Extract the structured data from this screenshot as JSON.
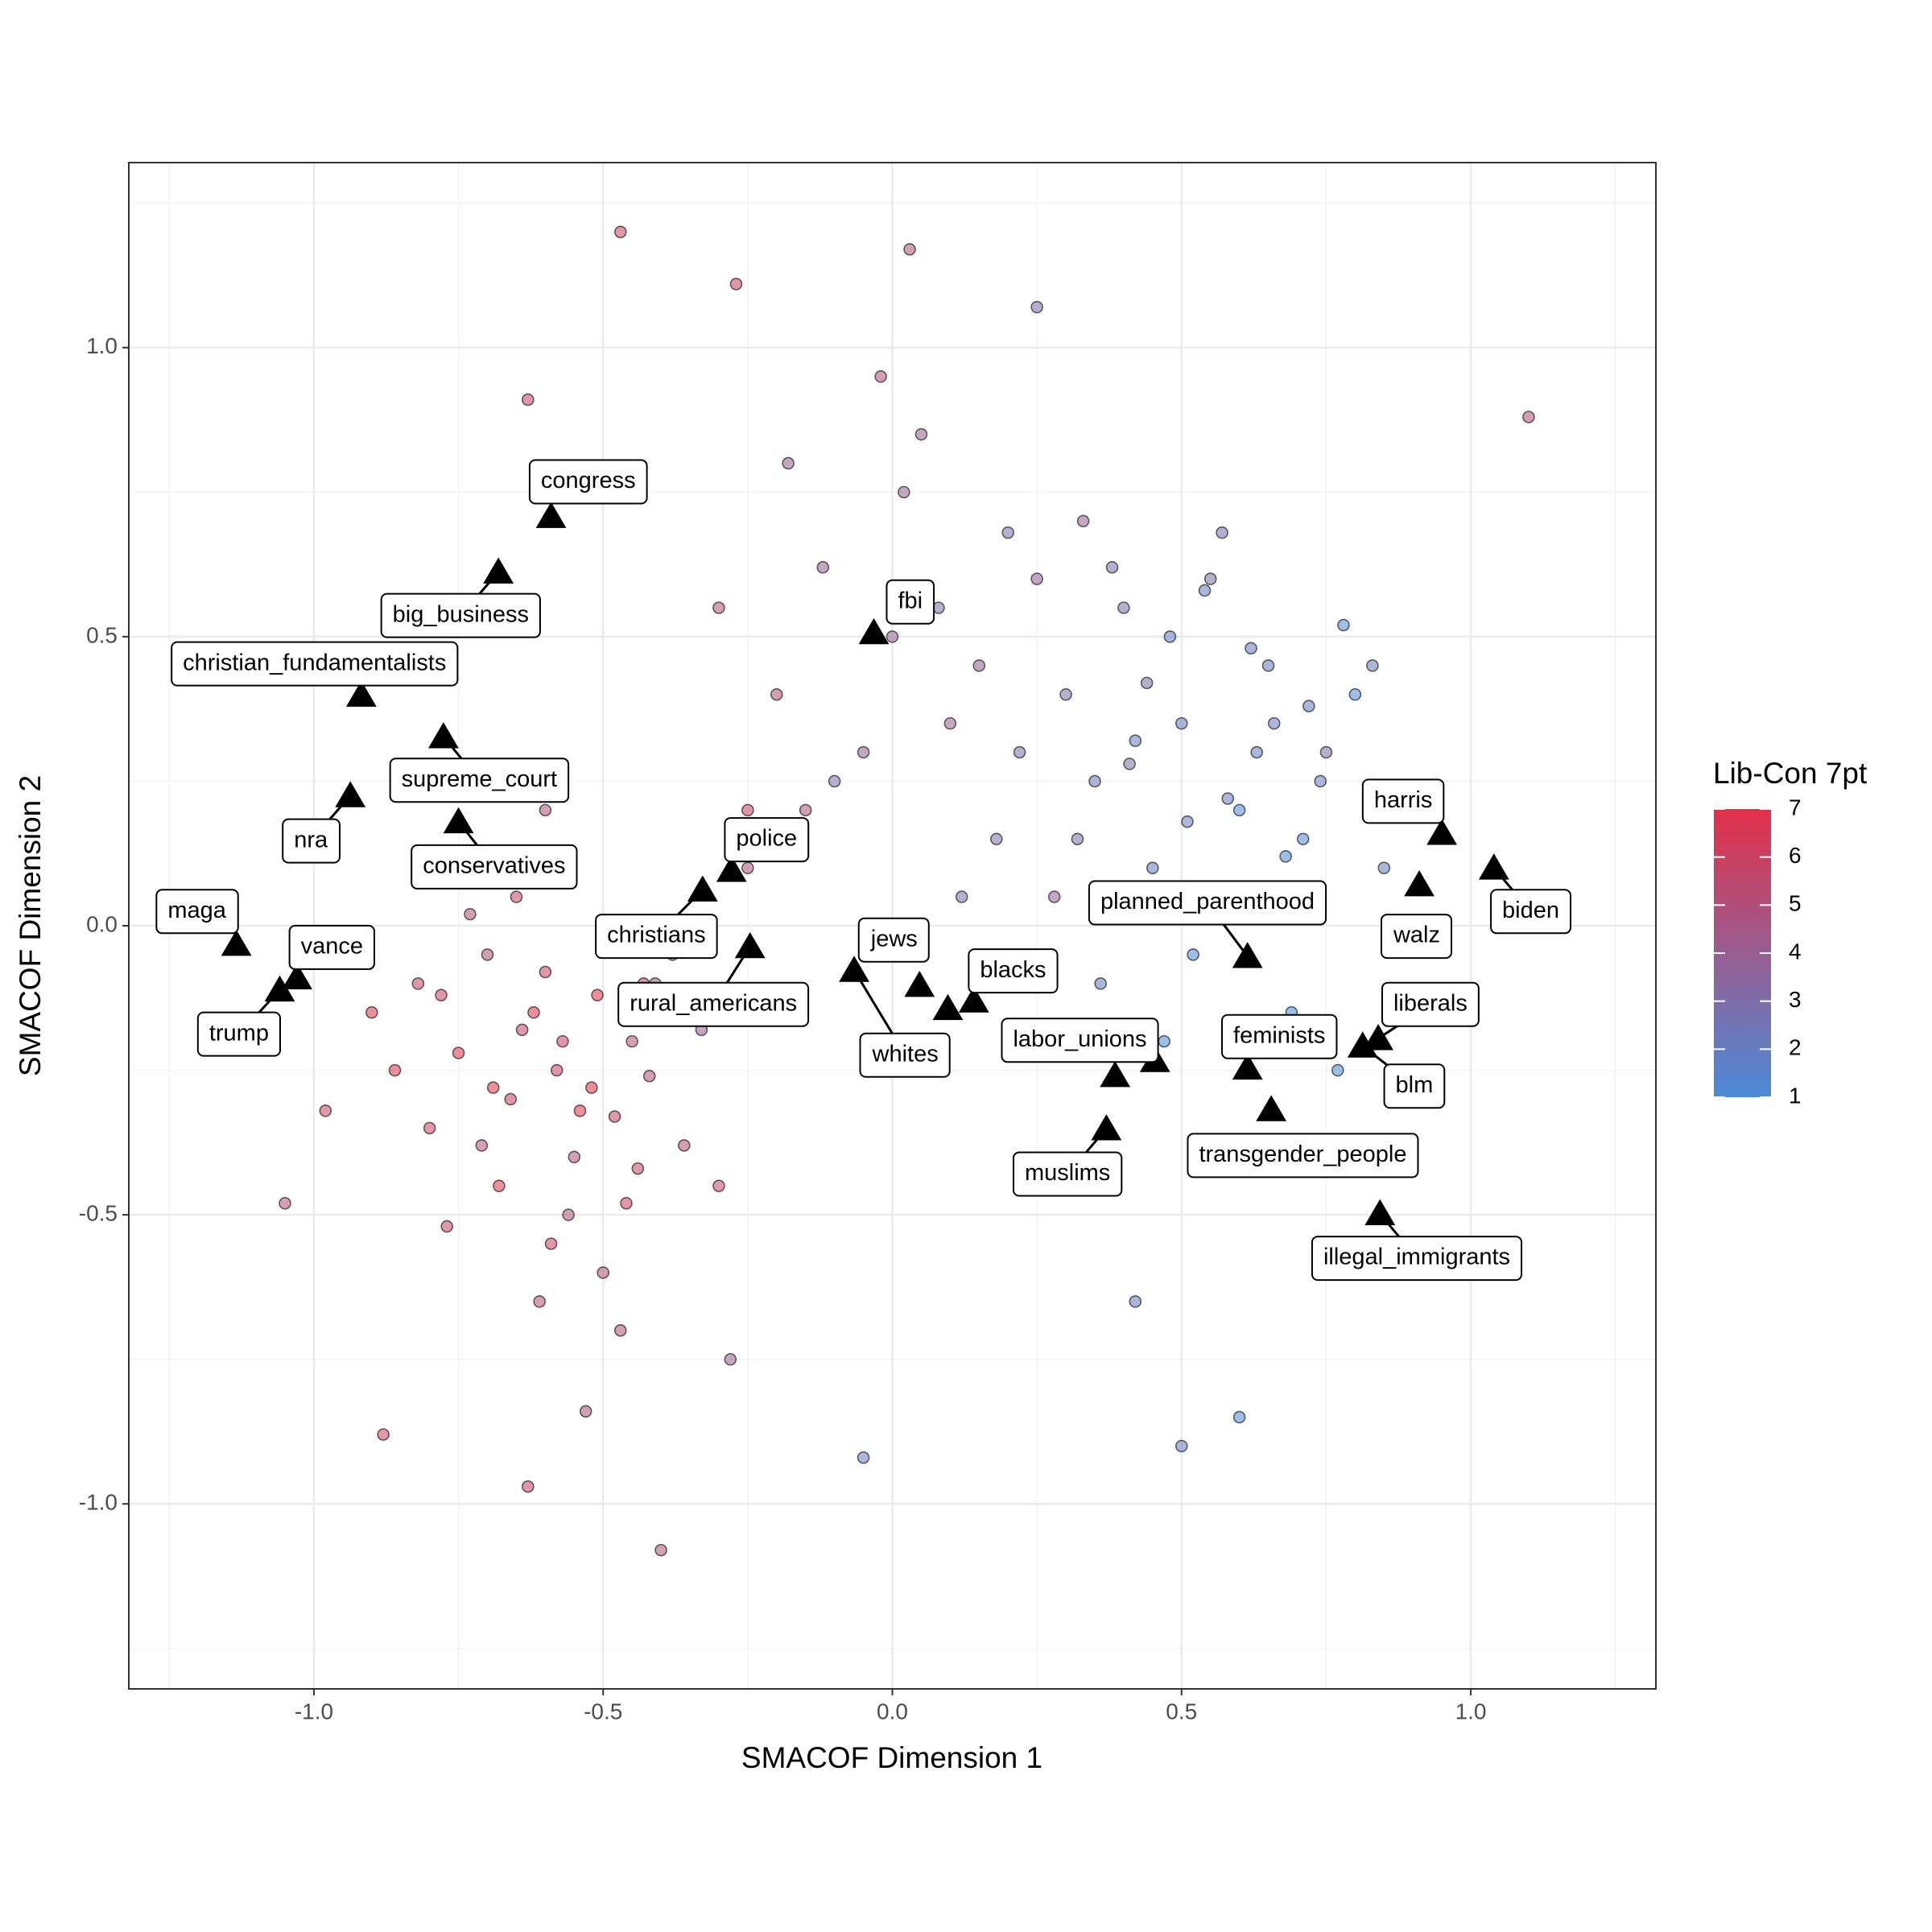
{
  "chart_data": {
    "type": "scatter",
    "xlabel": "SMACOF Dimension 1",
    "ylabel": "SMACOF Dimension 2",
    "xlim": [
      -1.32,
      1.32
    ],
    "ylim": [
      -1.32,
      1.32
    ],
    "xticks": [
      {
        "value": -1,
        "label": "-1.0"
      },
      -0.5,
      {
        "value": 0,
        "label": "0.0"
      },
      0.5,
      {
        "value": 1,
        "label": "1.0"
      }
    ],
    "yticks": [
      {
        "value": -1,
        "label": "-1.0"
      },
      -0.5,
      {
        "value": 0,
        "label": "0.0"
      },
      0.5,
      {
        "value": 1,
        "label": "1.0"
      }
    ],
    "x_minor": [
      -1.25,
      -0.75,
      -0.25,
      0.25,
      0.75,
      1.25
    ],
    "y_minor": [
      -1.25,
      -0.75,
      -0.25,
      0.25,
      0.75,
      1.25
    ],
    "grid": true,
    "legend_title": "Lib-Con 7pt",
    "zlim": [
      1,
      7
    ],
    "zticks": [
      1,
      2,
      3,
      4,
      5,
      6,
      7
    ],
    "colors": [
      "#4b8bd9",
      "#e33049"
    ],
    "x": [
      -0.82,
      -0.75,
      -0.7,
      -0.66,
      -0.62,
      -0.58,
      -0.55,
      -0.51,
      -0.48,
      -0.45,
      -0.8,
      -0.73,
      -0.68,
      -0.64,
      -0.6,
      -0.56,
      -0.52,
      -0.49,
      -0.44,
      -0.41,
      -0.86,
      -0.78,
      -0.71,
      -0.65,
      -0.59,
      -0.54,
      -0.5,
      -0.46,
      -0.42,
      -0.38,
      -0.9,
      -0.77,
      -0.69,
      -0.61,
      -0.57,
      -0.47,
      -0.43,
      -0.36,
      -0.33,
      -0.3,
      -1.05,
      -0.98,
      -0.88,
      -0.63,
      -0.53,
      -0.4,
      -0.28,
      -0.25,
      -0.6,
      -0.72,
      0.3,
      0.35,
      0.4,
      0.45,
      0.5,
      0.55,
      0.6,
      0.65,
      0.7,
      0.75,
      0.32,
      0.38,
      0.42,
      0.48,
      0.52,
      0.58,
      0.62,
      0.68,
      0.72,
      0.78,
      0.28,
      0.36,
      0.44,
      0.51,
      0.57,
      0.63,
      0.69,
      0.74,
      0.8,
      0.85,
      0.33,
      0.41,
      0.47,
      0.54,
      0.61,
      0.66,
      0.71,
      0.77,
      0.83,
      0.88,
      -0.2,
      -0.12,
      -0.05,
      0.02,
      0.08,
      0.15,
      0.2,
      0.25,
      -0.15,
      0.05,
      -0.25,
      -0.1,
      0.0,
      0.1,
      0.18,
      -0.3,
      -0.18,
      0.12,
      0.22,
      -0.02,
      -0.47,
      -0.63,
      -0.27,
      0.03,
      1.1,
      0.25,
      0.42,
      0.5,
      0.6,
      -0.05
    ],
    "y": [
      -0.1,
      -0.22,
      -0.05,
      -0.3,
      -0.15,
      -0.25,
      -0.4,
      -0.12,
      -0.33,
      -0.2,
      -0.35,
      0.02,
      -0.45,
      -0.18,
      -0.08,
      -0.5,
      -0.28,
      -0.02,
      -0.42,
      -0.1,
      -0.25,
      -0.12,
      -0.38,
      0.05,
      -0.55,
      -0.32,
      -0.6,
      -0.48,
      -0.26,
      -0.05,
      -0.15,
      -0.52,
      -0.28,
      -0.65,
      -0.2,
      -0.7,
      -0.1,
      -0.38,
      -0.18,
      -0.45,
      -0.48,
      -0.32,
      -0.88,
      -0.97,
      -0.84,
      -1.08,
      -0.75,
      0.2,
      0.2,
      0.1,
      0.4,
      0.25,
      0.55,
      0.1,
      0.35,
      0.6,
      0.2,
      0.45,
      0.05,
      0.3,
      0.15,
      0.62,
      0.32,
      0.5,
      -0.05,
      0.22,
      0.48,
      0.12,
      0.38,
      0.52,
      0.05,
      -0.1,
      0.42,
      0.18,
      0.68,
      0.3,
      -0.15,
      0.25,
      0.4,
      0.1,
      0.7,
      0.28,
      -0.2,
      0.58,
      0.05,
      0.35,
      0.15,
      -0.25,
      0.45,
      0.22,
      0.4,
      0.62,
      0.3,
      0.75,
      0.55,
      0.45,
      0.68,
      0.6,
      0.2,
      0.85,
      0.1,
      0.25,
      0.5,
      0.35,
      0.15,
      0.55,
      0.8,
      0.05,
      0.3,
      0.95,
      1.2,
      0.91,
      1.11,
      1.17,
      0.88,
      1.07,
      -0.65,
      -0.9,
      -0.85,
      -0.92
    ],
    "z": [
      6,
      7,
      5,
      6,
      7,
      6,
      5,
      7,
      6,
      5,
      6,
      5,
      7,
      6,
      6,
      5,
      7,
      5,
      6,
      4,
      7,
      6,
      5,
      6,
      6,
      7,
      5,
      6,
      5,
      5,
      7,
      6,
      7,
      5,
      6,
      5,
      6,
      5,
      4,
      6,
      5,
      6,
      6,
      6,
      5,
      5,
      4,
      6,
      5,
      6,
      3,
      2,
      3,
      2,
      2,
      3,
      1,
      2,
      2,
      3,
      3,
      3,
      2,
      2,
      1,
      2,
      2,
      1,
      2,
      1,
      4,
      2,
      3,
      2,
      3,
      2,
      1,
      2,
      1,
      2,
      4,
      3,
      1,
      2,
      2,
      2,
      1,
      1,
      2,
      1,
      5,
      4,
      4,
      4,
      3,
      4,
      3,
      4,
      5,
      4,
      5,
      3,
      4,
      4,
      3,
      5,
      4,
      3,
      3,
      5,
      6,
      6,
      6,
      5,
      5,
      3,
      2,
      2,
      1,
      2
    ],
    "landmarks": {
      "labels": [
        "congress",
        "big_business",
        "christian_fundamentalists",
        "supreme_court",
        "nra",
        "conservatives",
        "maga",
        "vance",
        "trump",
        "police",
        "christians",
        "rural_americans",
        "fbi",
        "jews",
        "whites",
        "blacks",
        "labor_unions",
        "muslims",
        "planned_parenthood",
        "feminists",
        "transgender_people",
        "illegal_immigrants",
        "harris",
        "biden",
        "walz",
        "liberals",
        "blm",
        null,
        null
      ],
      "x": [
        -0.59,
        -0.681,
        -0.918,
        -0.776,
        -0.937,
        -0.75,
        -1.134,
        -1.029,
        -1.059,
        -0.278,
        -0.328,
        -0.246,
        -0.032,
        0.047,
        -0.066,
        0.141,
        0.454,
        0.37,
        0.614,
        0.614,
        0.655,
        0.843,
        0.95,
        1.04,
        0.911,
        0.84,
        0.813,
        0.385,
        0.096
      ],
      "y": [
        0.708,
        0.612,
        0.399,
        0.327,
        0.225,
        0.18,
        -0.032,
        -0.09,
        -0.111,
        0.096,
        0.062,
        -0.036,
        0.507,
        -0.103,
        -0.077,
        -0.13,
        -0.233,
        -0.351,
        -0.053,
        -0.246,
        -0.318,
        -0.498,
        0.16,
        0.1,
        0.071,
        -0.195,
        -0.208,
        -0.259,
        -0.143
      ],
      "color": "#000000"
    }
  }
}
